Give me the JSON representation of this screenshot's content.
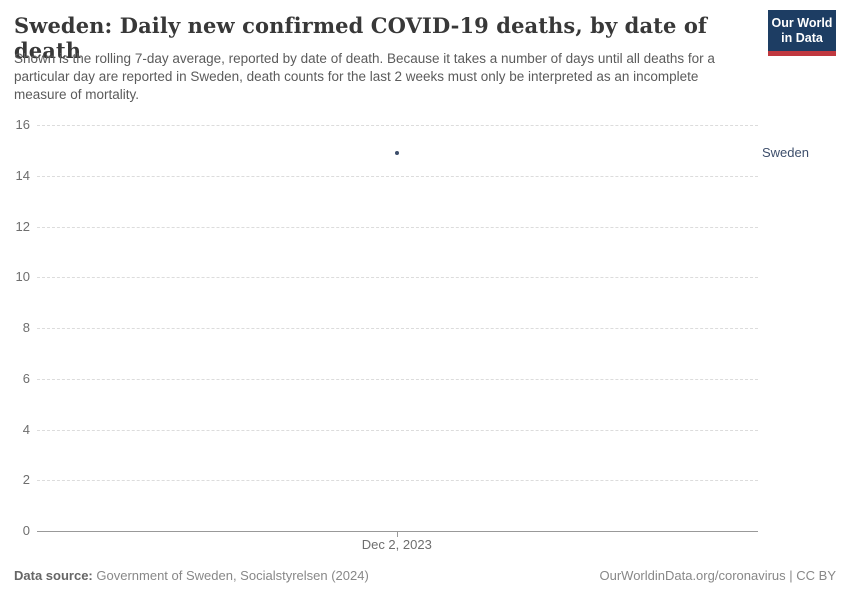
{
  "header": {
    "title": "Sweden: Daily new confirmed COVID-19 deaths, by date of death",
    "subtitle": "Shown is the rolling 7-day average, reported by date of death. Because it takes a number of days until all deaths for a particular day are reported in Sweden, death counts for the last 2 weeks must only be interpreted as an incomplete measure of mortality.",
    "logo": {
      "line1": "Our World",
      "line2": "in Data",
      "bg_color": "#1d3d63",
      "bar_color": "#c0383f",
      "text_color": "#ffffff"
    }
  },
  "chart_data": {
    "type": "scatter",
    "title": "Sweden: Daily new confirmed COVID-19 deaths, by date of death",
    "entity_label": "Sweden",
    "series": [
      {
        "name": "Sweden",
        "color": "#3d4e6b",
        "points": [
          {
            "x": "Dec 2, 2023",
            "y": 14.9,
            "x_frac": 0.499
          }
        ]
      }
    ],
    "x_ticks": [
      {
        "label": "Dec 2, 2023",
        "x_frac": 0.499
      }
    ],
    "y_ticks": [
      0,
      2,
      4,
      6,
      8,
      10,
      12,
      14,
      16
    ],
    "ylim": [
      0,
      16
    ],
    "grid": "horizontal-dashed",
    "legend_position": "right",
    "colors": {
      "gridline": "#dcdcdc",
      "axis": "#999999",
      "tick_label": "#6e6e6e"
    }
  },
  "footer": {
    "datasource_label": "Data source:",
    "datasource_value": "Government of Sweden, Socialstyrelsen (2024)",
    "attribution": "OurWorldinData.org/coronavirus | CC BY"
  }
}
